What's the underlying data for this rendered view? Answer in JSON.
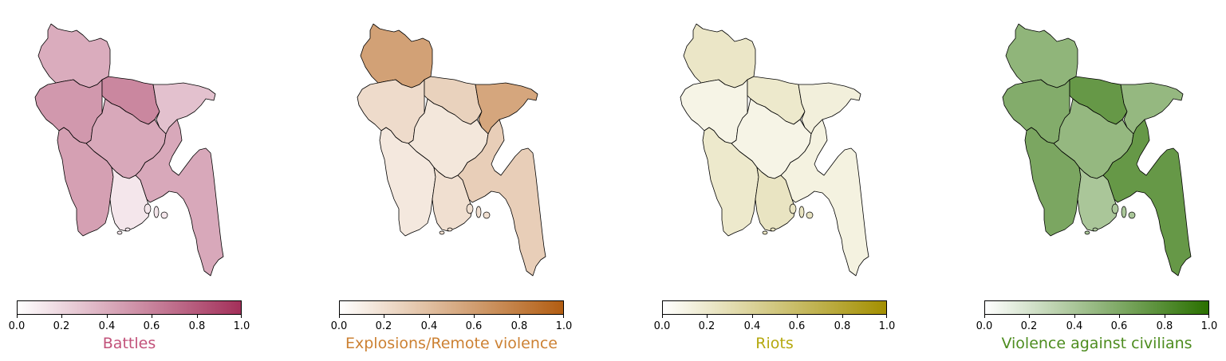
{
  "chart_data": [
    {
      "type": "choropleth",
      "title": "Battles",
      "colormap": [
        "#ffffff",
        "#a3305a"
      ],
      "title_color": "#c2527a",
      "ticks": [
        "0.0",
        "0.2",
        "0.4",
        "0.6",
        "0.8",
        "1.0"
      ],
      "range": [
        0,
        1
      ],
      "regions": [
        {
          "name": "Rangpur",
          "value": 0.4
        },
        {
          "name": "Rajshahi",
          "value": 0.5
        },
        {
          "name": "Mymensingh",
          "value": 0.58
        },
        {
          "name": "Sylhet",
          "value": 0.3
        },
        {
          "name": "Dhaka",
          "value": 0.42
        },
        {
          "name": "Khulna",
          "value": 0.46
        },
        {
          "name": "Barisal",
          "value": 0.12
        },
        {
          "name": "Chittagong",
          "value": 0.42
        }
      ]
    },
    {
      "type": "choropleth",
      "title": "Explosions/Remote violence",
      "colormap": [
        "#ffffff",
        "#b25d12"
      ],
      "title_color": "#cc8133",
      "ticks": [
        "0.0",
        "0.2",
        "0.4",
        "0.6",
        "0.8",
        "1.0"
      ],
      "range": [
        0,
        1
      ],
      "regions": [
        {
          "name": "Rangpur",
          "value": 0.58
        },
        {
          "name": "Rajshahi",
          "value": 0.22
        },
        {
          "name": "Mymensingh",
          "value": 0.28
        },
        {
          "name": "Sylhet",
          "value": 0.55
        },
        {
          "name": "Dhaka",
          "value": 0.15
        },
        {
          "name": "Khulna",
          "value": 0.14
        },
        {
          "name": "Barisal",
          "value": 0.2
        },
        {
          "name": "Chittagong",
          "value": 0.3
        }
      ]
    },
    {
      "type": "choropleth",
      "title": "Riots",
      "colormap": [
        "#ffffff",
        "#a38f00"
      ],
      "title_color": "#b5a80e",
      "ticks": [
        "0.0",
        "0.2",
        "0.4",
        "0.6",
        "0.8",
        "1.0"
      ],
      "range": [
        0,
        1
      ],
      "regions": [
        {
          "name": "Rangpur",
          "value": 0.22
        },
        {
          "name": "Rajshahi",
          "value": 0.1
        },
        {
          "name": "Mymensingh",
          "value": 0.2
        },
        {
          "name": "Sylhet",
          "value": 0.14
        },
        {
          "name": "Dhaka",
          "value": 0.1
        },
        {
          "name": "Khulna",
          "value": 0.2
        },
        {
          "name": "Barisal",
          "value": 0.24
        },
        {
          "name": "Chittagong",
          "value": 0.12
        }
      ]
    },
    {
      "type": "choropleth",
      "title": "Violence against civilians",
      "colormap": [
        "#ffffff",
        "#2a7000"
      ],
      "title_color": "#4d8c1f",
      "ticks": [
        "0.0",
        "0.2",
        "0.4",
        "0.6",
        "0.8",
        "1.0"
      ],
      "range": [
        0,
        1
      ],
      "regions": [
        {
          "name": "Rangpur",
          "value": 0.52
        },
        {
          "name": "Rajshahi",
          "value": 0.58
        },
        {
          "name": "Mymensingh",
          "value": 0.72
        },
        {
          "name": "Sylhet",
          "value": 0.5
        },
        {
          "name": "Dhaka",
          "value": 0.5
        },
        {
          "name": "Khulna",
          "value": 0.62
        },
        {
          "name": "Barisal",
          "value": 0.4
        },
        {
          "name": "Chittagong",
          "value": 0.72
        }
      ]
    }
  ]
}
